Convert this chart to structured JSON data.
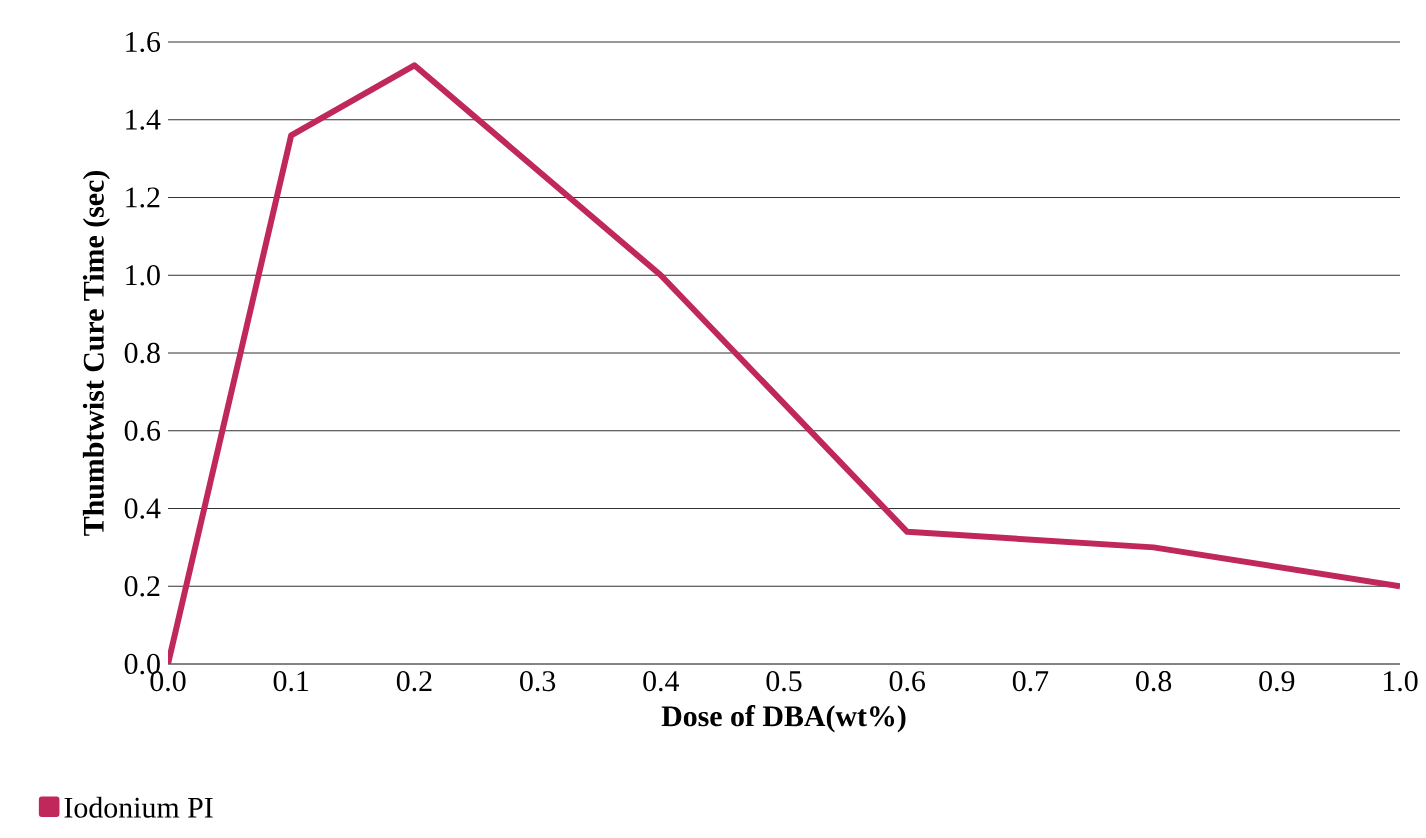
{
  "chart_data": {
    "type": "line",
    "xlabel": "Dose of DBA(wt%)",
    "ylabel": "Thumbtwist Cure Time (sec)",
    "x": [
      0,
      0.1,
      0.2,
      0.4,
      0.6,
      0.8,
      1.0
    ],
    "series": [
      {
        "name": "Iodonium PI",
        "color": "#c0275a",
        "values": [
          0,
          1.36,
          1.54,
          1.0,
          0.34,
          0.3,
          0.2
        ]
      }
    ],
    "xlim": [
      0,
      1
    ],
    "ylim": [
      0,
      1.6
    ],
    "xticks": [
      {
        "value": 0,
        "label": "0.0"
      },
      0.1,
      0.2,
      0.3,
      0.4,
      0.5,
      0.6,
      0.7,
      0.8,
      0.9,
      {
        "value": 1,
        "label": "1.0"
      }
    ],
    "yticks": [
      {
        "value": 0,
        "label": "0.0"
      },
      0.2,
      0.4,
      0.6,
      0.8,
      {
        "value": 1,
        "label": "1.0"
      },
      1.2,
      1.4,
      1.6
    ],
    "grid": "y",
    "legend": "bottom left",
    "marker": "none",
    "line_style": "solid"
  }
}
